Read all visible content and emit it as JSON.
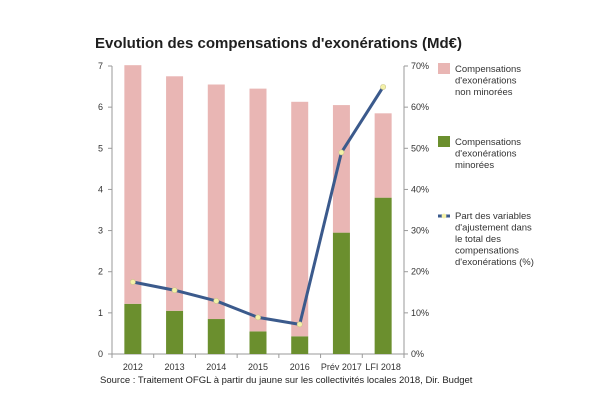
{
  "chart_data": {
    "type": "bar",
    "title": "Evolution des compensations d'exonérations (Md€)",
    "categories": [
      "2012",
      "2013",
      "2014",
      "2015",
      "2016",
      "Prév 2017",
      "LFI 2018"
    ],
    "series": [
      {
        "name": "Compensations d'exonérations non minorées",
        "kind": "stacked-bar",
        "axis": "left",
        "color": "#e9b6b4",
        "values": [
          5.8,
          5.7,
          5.7,
          5.9,
          5.7,
          3.1,
          2.05
        ]
      },
      {
        "name": "Compensations d'exonérations minorées",
        "kind": "stacked-bar",
        "axis": "left",
        "color": "#6b8f2e",
        "values": [
          1.22,
          1.05,
          0.85,
          0.55,
          0.43,
          2.95,
          3.8
        ]
      },
      {
        "name": "Part des variables d'ajustement dans le total des compensations d'exonérations (%)",
        "kind": "line",
        "axis": "right",
        "color": "#3b5a8c",
        "marker_color": "#f4f1a8",
        "values": [
          17.5,
          15.5,
          12.9,
          8.9,
          7.2,
          49,
          64.9
        ]
      }
    ],
    "y_left": {
      "min": 0,
      "max": 7,
      "ticks": [
        "0",
        "1",
        "2",
        "3",
        "4",
        "5",
        "6",
        "7"
      ]
    },
    "y_right": {
      "min": 0,
      "max": 70,
      "ticks": [
        "0%",
        "10%",
        "20%",
        "30%",
        "40%",
        "50%",
        "60%",
        "70%"
      ]
    },
    "grid": false,
    "legend_position": "right",
    "legend": [
      {
        "lines": [
          "Compensations",
          "d'exonérations",
          "non minorées"
        ]
      },
      {
        "lines": [
          "Compensations",
          "d'exonérations",
          "minorées"
        ]
      },
      {
        "lines": [
          "Part des variables",
          "d'ajustement dans",
          "le total des",
          "compensations",
          "d'exonérations (%)"
        ]
      }
    ],
    "source": "Source : Traitement OFGL à partir du jaune sur les collectivités locales 2018, Dir. Budget"
  }
}
